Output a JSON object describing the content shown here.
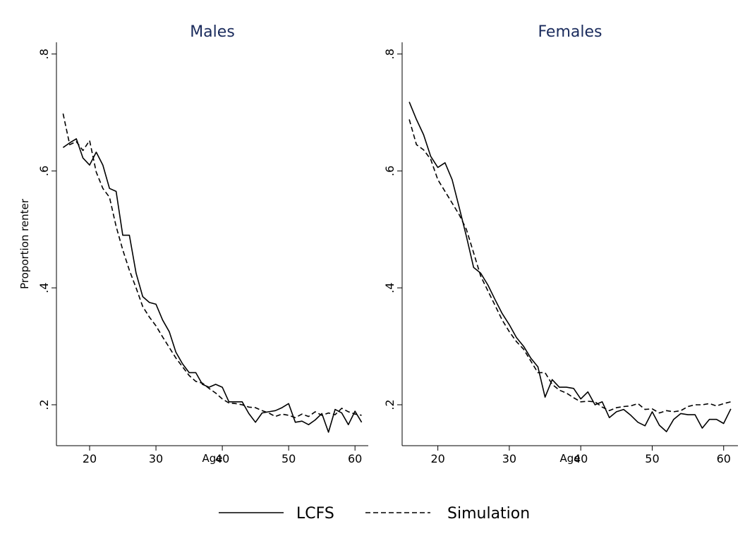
{
  "chart_data": [
    {
      "type": "line",
      "title": "Males",
      "xlabel": "Age",
      "ylabel": "Proportion renter",
      "xlim": [
        15,
        62
      ],
      "ylim": [
        0.13,
        0.82
      ],
      "xticks": [
        20,
        30,
        40,
        50,
        60
      ],
      "xtick_labels": [
        "20",
        "30",
        "40",
        "50",
        "60"
      ],
      "yticks": [
        0.2,
        0.4,
        0.6,
        0.8
      ],
      "ytick_labels": [
        ".2",
        ".4",
        ".6",
        ".8"
      ],
      "grid": false,
      "x": [
        16,
        17,
        18,
        19,
        20,
        21,
        22,
        23,
        24,
        25,
        26,
        27,
        28,
        29,
        30,
        31,
        32,
        33,
        34,
        35,
        36,
        37,
        38,
        39,
        40,
        41,
        42,
        43,
        44,
        45,
        46,
        47,
        48,
        49,
        50,
        51,
        52,
        53,
        54,
        55,
        56,
        57,
        58,
        59,
        60,
        61
      ],
      "series": [
        {
          "name": "LCFS",
          "dash": "solid",
          "values": [
            0.64,
            0.648,
            0.655,
            0.622,
            0.61,
            0.632,
            0.61,
            0.57,
            0.565,
            0.49,
            0.49,
            0.425,
            0.385,
            0.375,
            0.372,
            0.345,
            0.325,
            0.29,
            0.27,
            0.255,
            0.255,
            0.235,
            0.23,
            0.235,
            0.23,
            0.205,
            0.205,
            0.205,
            0.185,
            0.17,
            0.186,
            0.188,
            0.19,
            0.195,
            0.202,
            0.17,
            0.172,
            0.166,
            0.174,
            0.185,
            0.153,
            0.192,
            0.186,
            0.166,
            0.189,
            0.17
          ]
        },
        {
          "name": "Simulation",
          "dash": "dashed",
          "values": [
            0.698,
            0.645,
            0.65,
            0.635,
            0.652,
            0.598,
            0.57,
            0.555,
            0.505,
            0.465,
            0.43,
            0.4,
            0.368,
            0.35,
            0.335,
            0.316,
            0.298,
            0.28,
            0.265,
            0.25,
            0.24,
            0.237,
            0.228,
            0.22,
            0.21,
            0.203,
            0.202,
            0.2,
            0.196,
            0.195,
            0.19,
            0.186,
            0.18,
            0.184,
            0.182,
            0.178,
            0.184,
            0.18,
            0.188,
            0.182,
            0.186,
            0.183,
            0.194,
            0.188,
            0.184,
            0.182
          ]
        }
      ],
      "legend": [
        "LCFS",
        "Simulation"
      ],
      "legend_position": "bottom"
    },
    {
      "type": "line",
      "title": "Females",
      "xlabel": "Age",
      "ylabel": "",
      "xlim": [
        15,
        62
      ],
      "ylim": [
        0.13,
        0.82
      ],
      "xticks": [
        20,
        30,
        40,
        50,
        60
      ],
      "xtick_labels": [
        "20",
        "30",
        "40",
        "50",
        "60"
      ],
      "yticks": [
        0.2,
        0.4,
        0.6,
        0.8
      ],
      "ytick_labels": [
        ".2",
        ".4",
        ".6",
        ".8"
      ],
      "grid": false,
      "x": [
        16,
        17,
        18,
        19,
        20,
        21,
        22,
        23,
        24,
        25,
        26,
        27,
        28,
        29,
        30,
        31,
        32,
        33,
        34,
        35,
        36,
        37,
        38,
        39,
        40,
        41,
        42,
        43,
        44,
        45,
        46,
        47,
        48,
        49,
        50,
        51,
        52,
        53,
        54,
        55,
        56,
        57,
        58,
        59,
        60,
        61
      ],
      "series": [
        {
          "name": "LCFS",
          "dash": "solid",
          "values": [
            0.718,
            0.688,
            0.662,
            0.625,
            0.606,
            0.614,
            0.585,
            0.537,
            0.488,
            0.435,
            0.425,
            0.405,
            0.38,
            0.356,
            0.337,
            0.315,
            0.3,
            0.28,
            0.265,
            0.213,
            0.243,
            0.23,
            0.23,
            0.228,
            0.21,
            0.222,
            0.2,
            0.205,
            0.178,
            0.188,
            0.192,
            0.182,
            0.17,
            0.164,
            0.188,
            0.165,
            0.154,
            0.175,
            0.185,
            0.183,
            0.183,
            0.16,
            0.175,
            0.175,
            0.168,
            0.193
          ]
        },
        {
          "name": "Simulation",
          "dash": "dashed",
          "values": [
            0.688,
            0.645,
            0.636,
            0.62,
            0.585,
            0.565,
            0.545,
            0.525,
            0.5,
            0.46,
            0.42,
            0.395,
            0.37,
            0.345,
            0.325,
            0.308,
            0.295,
            0.275,
            0.255,
            0.255,
            0.235,
            0.225,
            0.22,
            0.212,
            0.205,
            0.206,
            0.205,
            0.196,
            0.19,
            0.195,
            0.197,
            0.198,
            0.202,
            0.192,
            0.193,
            0.186,
            0.19,
            0.188,
            0.19,
            0.197,
            0.2,
            0.2,
            0.202,
            0.198,
            0.202,
            0.205
          ]
        }
      ],
      "legend": [
        "LCFS",
        "Simulation"
      ],
      "legend_position": "bottom"
    }
  ]
}
